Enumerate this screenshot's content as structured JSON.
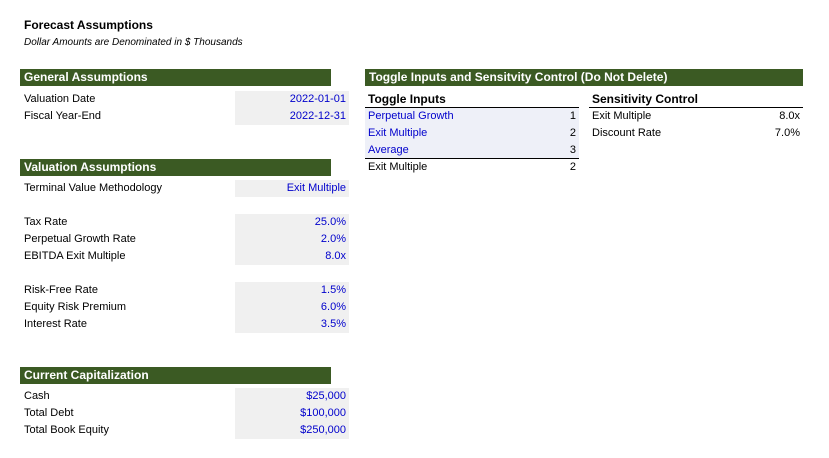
{
  "header": {
    "title": "Forecast Assumptions",
    "subtitle": "Dollar Amounts are Denominated in $ Thousands"
  },
  "general": {
    "title": "General Assumptions",
    "rows": [
      {
        "label": "Valuation Date",
        "value": "2022-01-01"
      },
      {
        "label": "Fiscal Year-End",
        "value": "2022-12-31"
      }
    ]
  },
  "valuation": {
    "title": "Valuation Assumptions",
    "methodology": {
      "label": "Terminal Value Methodology",
      "value": "Exit Multiple"
    },
    "group1": [
      {
        "label": "Tax Rate",
        "value": "25.0%"
      },
      {
        "label": "Perpetual Growth Rate",
        "value": "2.0%"
      },
      {
        "label": "EBITDA Exit Multiple",
        "value": "8.0x"
      }
    ],
    "group2": [
      {
        "label": "Risk-Free Rate",
        "value": "1.5%"
      },
      {
        "label": "Equity Risk Premium",
        "value": "6.0%"
      },
      {
        "label": "Interest Rate",
        "value": "3.5%"
      }
    ]
  },
  "capitalization": {
    "title": "Current Capitalization",
    "rows": [
      {
        "label": "Cash",
        "value": "$25,000"
      },
      {
        "label": "Total Debt",
        "value": "$100,000"
      },
      {
        "label": "Total Book Equity",
        "value": "$250,000"
      }
    ]
  },
  "toggle": {
    "title": "Toggle Inputs and Sensitvity Control (Do Not Delete)",
    "inputs_header": "Toggle Inputs",
    "inputs": [
      {
        "name": "Perpetual Growth",
        "num": "1"
      },
      {
        "name": "Exit Multiple",
        "num": "2"
      },
      {
        "name": "Average",
        "num": "3"
      }
    ],
    "selected": {
      "name": "Exit Multiple",
      "num": "2"
    },
    "sensitivity_header": "Sensitivity Control",
    "sensitivity": [
      {
        "name": "Exit Multiple",
        "value": "8.0x"
      },
      {
        "name": "Discount Rate",
        "value": "7.0%"
      }
    ]
  },
  "colors": {
    "header_bg": "#3b5a23",
    "input_text": "#0000cc",
    "input_bg": "#f0f0f0"
  }
}
